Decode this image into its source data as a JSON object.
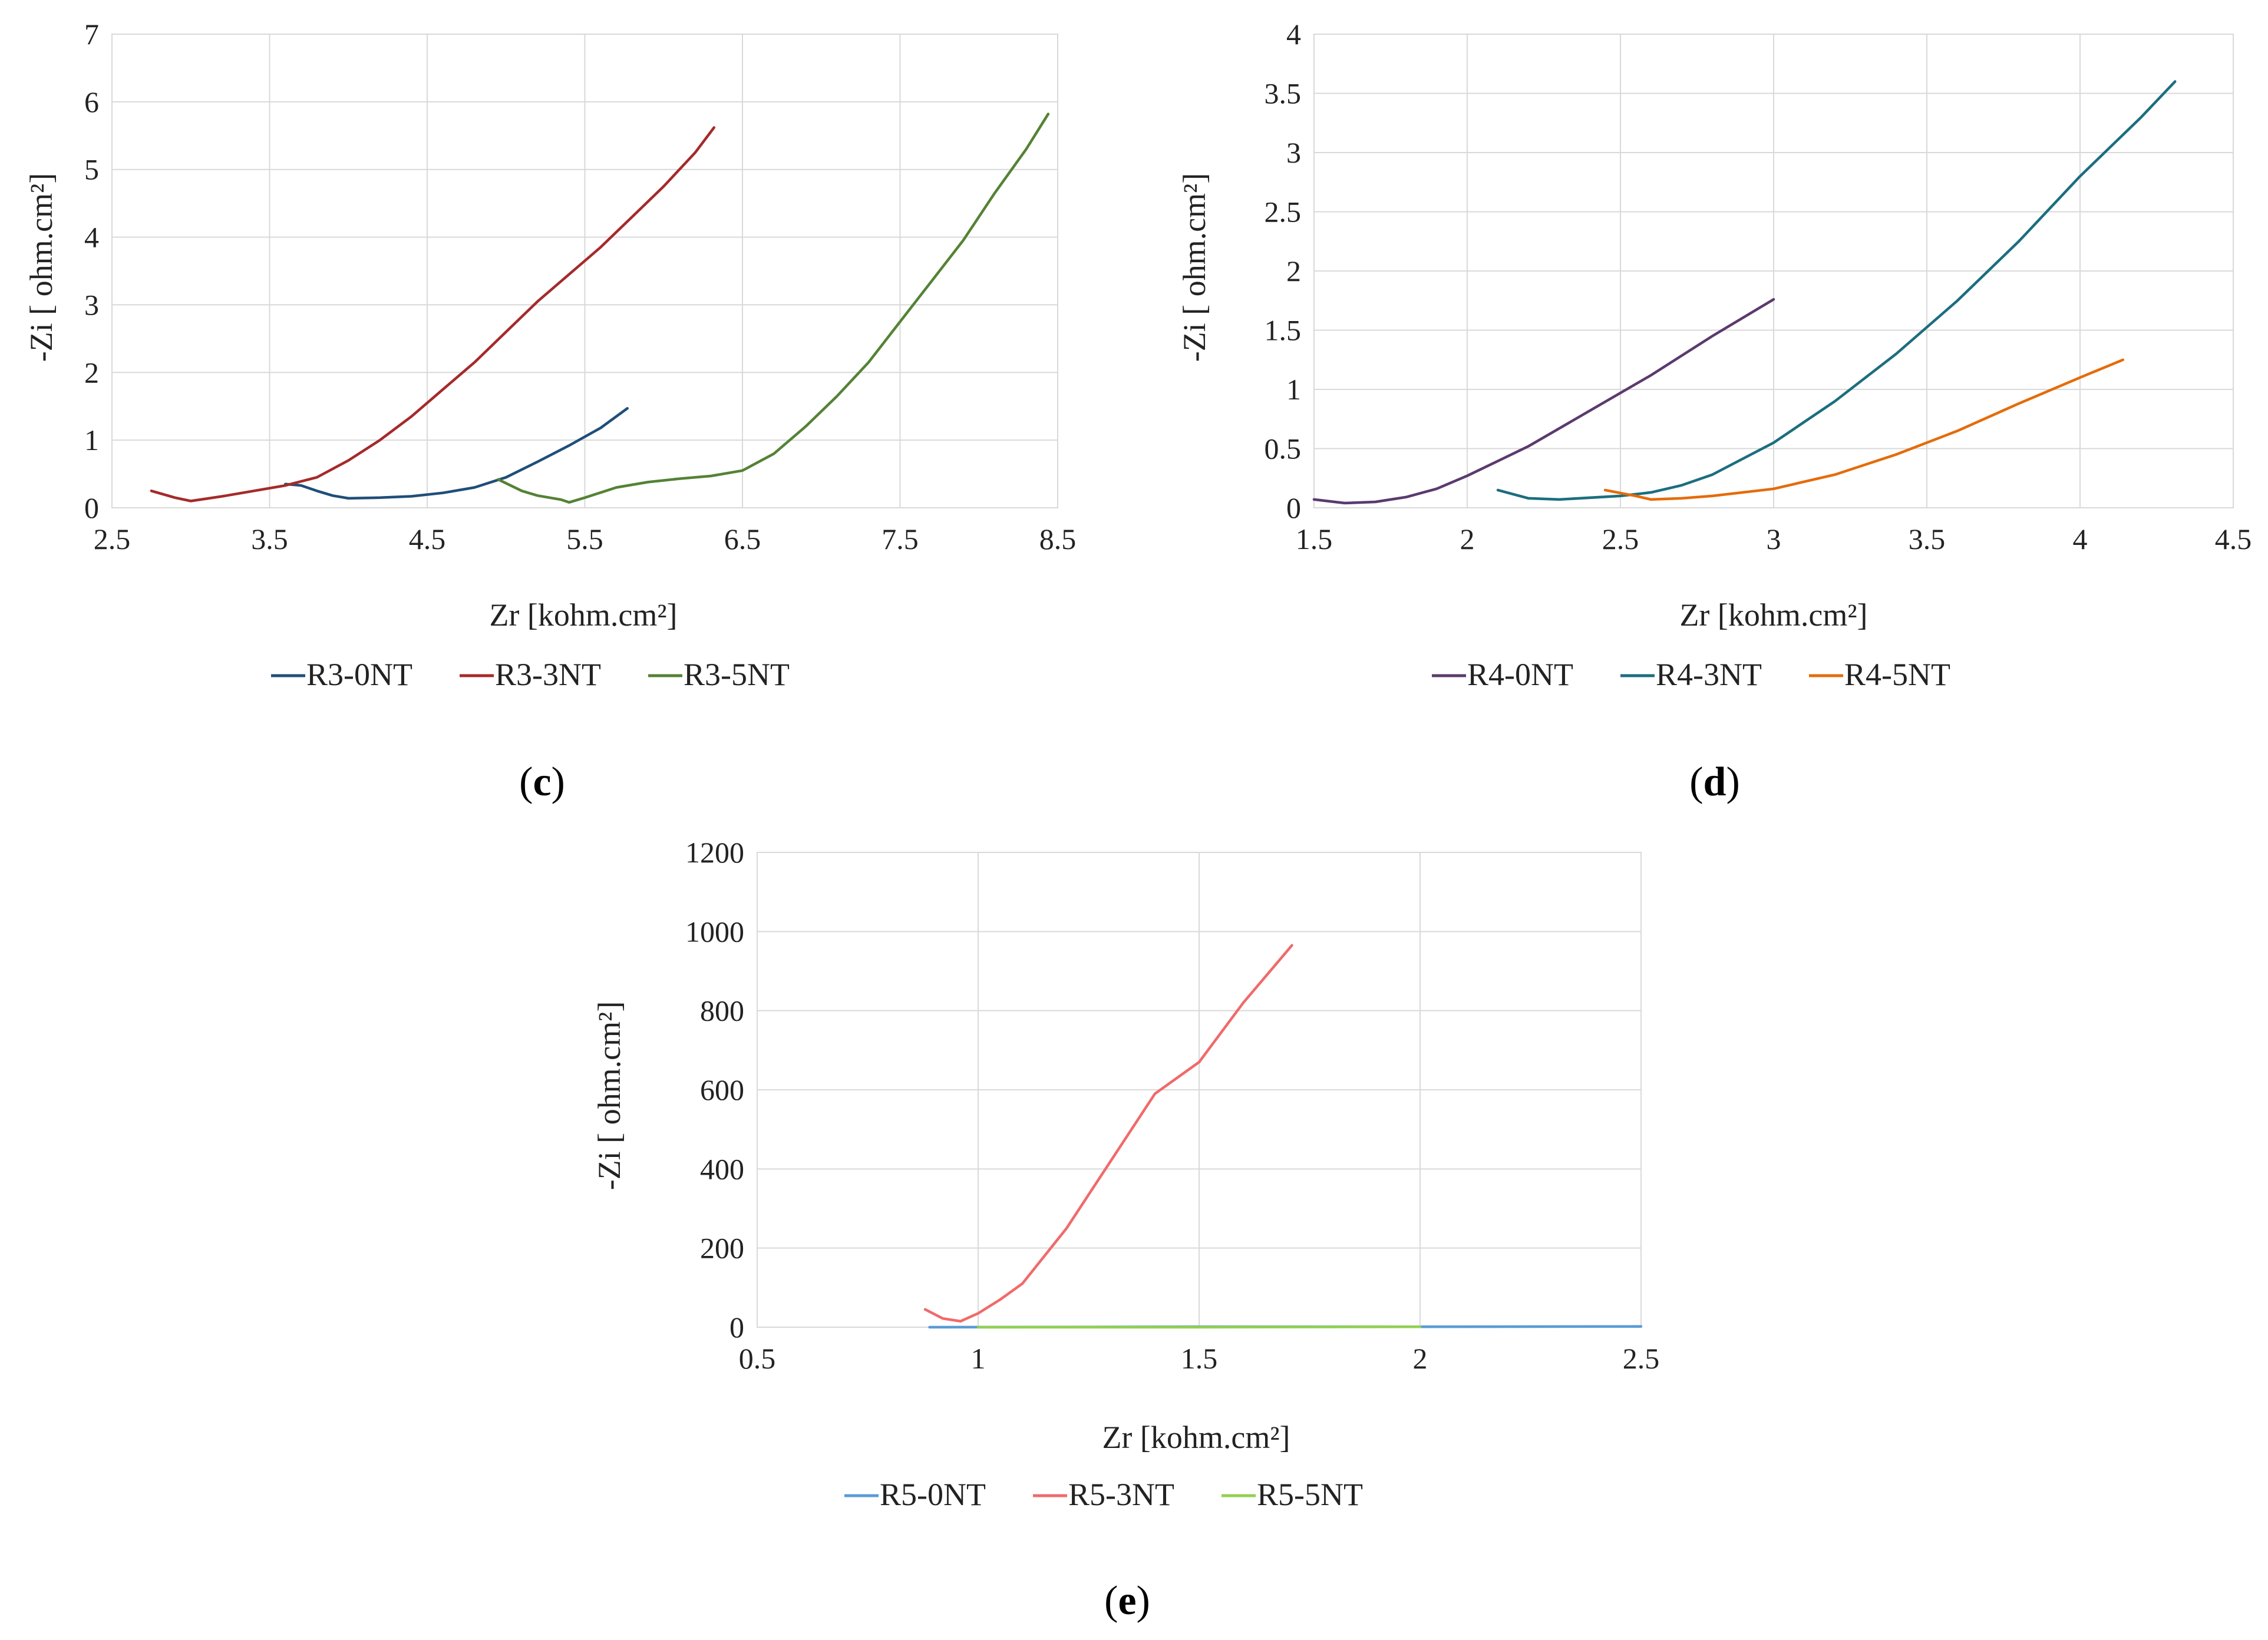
{
  "chart_data": [
    {
      "panel": "(c)",
      "panel_letter": "c",
      "type": "line",
      "xlabel": "Zr [kohm.cm²]",
      "ylabel": "-Zi [ ohm.cm²]",
      "xlim": [
        2.5,
        8.5
      ],
      "ylim": [
        0,
        7
      ],
      "xticks": [
        2.5,
        3.5,
        4.5,
        5.5,
        6.5,
        7.5,
        8.5
      ],
      "xtick_labels": [
        "2.5",
        "3.5",
        "4.5",
        "5.5",
        "6.5",
        "7.5",
        "8.5"
      ],
      "yticks": [
        0,
        1,
        2,
        3,
        4,
        5,
        6,
        7
      ],
      "ytick_labels": [
        "0",
        "1",
        "2",
        "3",
        "4",
        "5",
        "6",
        "7"
      ],
      "legend_position": "bottom",
      "series": [
        {
          "name": "R3-0NT",
          "color": "#1f4e79",
          "x": [
            3.6,
            3.7,
            3.8,
            3.9,
            4.0,
            4.2,
            4.4,
            4.6,
            4.8,
            5.0,
            5.2,
            5.4,
            5.6,
            5.77
          ],
          "y": [
            0.35,
            0.33,
            0.25,
            0.18,
            0.14,
            0.15,
            0.17,
            0.22,
            0.3,
            0.45,
            0.68,
            0.92,
            1.18,
            1.47
          ]
        },
        {
          "name": "R3-3NT",
          "color": "#a52a2a",
          "x": [
            2.75,
            2.9,
            3.0,
            3.2,
            3.4,
            3.6,
            3.8,
            4.0,
            4.2,
            4.4,
            4.6,
            4.8,
            5.0,
            5.2,
            5.4,
            5.6,
            5.8,
            6.0,
            6.2,
            6.32
          ],
          "y": [
            0.25,
            0.15,
            0.1,
            0.17,
            0.25,
            0.33,
            0.45,
            0.7,
            1.0,
            1.35,
            1.75,
            2.15,
            2.6,
            3.05,
            3.45,
            3.85,
            4.3,
            4.75,
            5.25,
            5.62
          ]
        },
        {
          "name": "R3-5NT",
          "color": "#548235",
          "x": [
            4.95,
            5.1,
            5.2,
            5.35,
            5.4,
            5.5,
            5.7,
            5.9,
            6.1,
            6.3,
            6.5,
            6.7,
            6.9,
            7.1,
            7.3,
            7.5,
            7.7,
            7.9,
            8.1,
            8.3,
            8.44
          ],
          "y": [
            0.42,
            0.25,
            0.18,
            0.12,
            0.08,
            0.15,
            0.3,
            0.38,
            0.43,
            0.47,
            0.55,
            0.8,
            1.2,
            1.65,
            2.15,
            2.75,
            3.35,
            3.95,
            4.65,
            5.3,
            5.82
          ]
        }
      ]
    },
    {
      "panel": "(d)",
      "panel_letter": "d",
      "type": "line",
      "xlabel": "Zr [kohm.cm²]",
      "ylabel": "-Zi [ ohm.cm²]",
      "xlim": [
        1.5,
        4.5
      ],
      "ylim": [
        0,
        4
      ],
      "xticks": [
        1.5,
        2,
        2.5,
        3,
        3.5,
        4,
        4.5
      ],
      "xtick_labels": [
        "1.5",
        "2",
        "2.5",
        "3",
        "3.5",
        "4",
        "4.5"
      ],
      "yticks": [
        0,
        0.5,
        1,
        1.5,
        2,
        2.5,
        3,
        3.5,
        4
      ],
      "ytick_labels": [
        "0",
        "0.5",
        "1",
        "1.5",
        "2",
        "2.5",
        "3",
        "3.5",
        "4"
      ],
      "legend_position": "bottom",
      "series": [
        {
          "name": "R4-0NT",
          "color": "#5b3a6e",
          "x": [
            1.5,
            1.6,
            1.7,
            1.8,
            1.9,
            2.0,
            2.2,
            2.4,
            2.6,
            2.8,
            3.0
          ],
          "y": [
            0.07,
            0.04,
            0.05,
            0.09,
            0.16,
            0.27,
            0.52,
            0.82,
            1.12,
            1.45,
            1.76
          ]
        },
        {
          "name": "R4-3NT",
          "color": "#1b6e7e",
          "x": [
            2.1,
            2.2,
            2.3,
            2.5,
            2.6,
            2.7,
            2.8,
            3.0,
            3.2,
            3.4,
            3.6,
            3.8,
            4.0,
            4.2,
            4.31
          ],
          "y": [
            0.15,
            0.08,
            0.07,
            0.1,
            0.13,
            0.19,
            0.28,
            0.55,
            0.9,
            1.3,
            1.75,
            2.25,
            2.8,
            3.3,
            3.6
          ]
        },
        {
          "name": "R4-5NT",
          "color": "#e46c0a",
          "x": [
            2.45,
            2.55,
            2.6,
            2.7,
            2.8,
            3.0,
            3.2,
            3.4,
            3.6,
            3.8,
            4.0,
            4.14
          ],
          "y": [
            0.15,
            0.1,
            0.07,
            0.08,
            0.1,
            0.16,
            0.28,
            0.45,
            0.65,
            0.88,
            1.1,
            1.25
          ]
        }
      ]
    },
    {
      "panel": "(e)",
      "panel_letter": "e",
      "type": "line",
      "xlabel": "Zr [kohm.cm²]",
      "ylabel": "-Zi [ ohm.cm²]",
      "xlim": [
        0.5,
        2.5
      ],
      "ylim": [
        0,
        1200
      ],
      "xticks": [
        0.5,
        1,
        1.5,
        2,
        2.5
      ],
      "xtick_labels": [
        "0.5",
        "1",
        "1.5",
        "2",
        "2.5"
      ],
      "yticks": [
        0,
        200,
        400,
        600,
        800,
        1000,
        1200
      ],
      "ytick_labels": [
        "0",
        "200",
        "400",
        "600",
        "800",
        "1000",
        "1200"
      ],
      "legend_position": "bottom",
      "series": [
        {
          "name": "R5-0NT",
          "color": "#5b9bd5",
          "x": [
            0.89,
            1.5,
            2.0,
            2.5
          ],
          "y": [
            0,
            1,
            1,
            2
          ]
        },
        {
          "name": "R5-3NT",
          "color": "#f06a6a",
          "x": [
            0.88,
            0.92,
            0.96,
            1.0,
            1.05,
            1.1,
            1.2,
            1.3,
            1.4,
            1.5,
            1.6,
            1.71
          ],
          "y": [
            45,
            22,
            15,
            35,
            70,
            110,
            250,
            420,
            590,
            670,
            820,
            965
          ]
        },
        {
          "name": "R5-5NT",
          "color": "#92d050",
          "x": [
            1.0,
            1.5,
            2.0
          ],
          "y": [
            0,
            0,
            1
          ]
        }
      ]
    }
  ]
}
